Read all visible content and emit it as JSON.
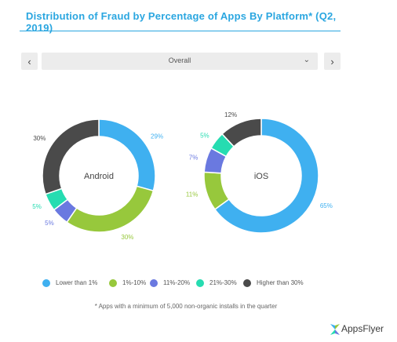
{
  "title": "Distribution of Fraud by Percentage of Apps By Platform*  (Q2, 2019)",
  "filter": {
    "prev_label": "‹",
    "next_label": "›",
    "selected": "Overall",
    "caret": "⌄"
  },
  "legend": [
    {
      "label": "Lower than 1%",
      "color": "#3fb0f0"
    },
    {
      "label": "1%-10%",
      "color": "#97c83c"
    },
    {
      "label": "11%-20%",
      "color": "#6a79e0"
    },
    {
      "label": "21%-30%",
      "color": "#26dcb1"
    },
    {
      "label": "Higher than 30%",
      "color": "#4a4a4a"
    }
  ],
  "footnote": "* Apps with a minimum of 5,000 non-organic installs in the quarter",
  "logo": {
    "text": "AppsFlyer",
    "icon": "appsflyer-logo-icon"
  },
  "chart_data": [
    {
      "type": "pie",
      "center_label": "Android",
      "categories": [
        "Lower than 1%",
        "1%-10%",
        "11%-20%",
        "21%-30%",
        "Higher than 30%"
      ],
      "values": [
        29,
        30,
        5,
        5,
        30
      ],
      "data_labels": [
        "29%",
        "30%",
        "5%",
        "5%",
        "30%"
      ]
    },
    {
      "type": "pie",
      "center_label": "iOS",
      "categories": [
        "Lower than 1%",
        "1%-10%",
        "11%-20%",
        "21%-30%",
        "Higher than 30%"
      ],
      "values": [
        65,
        11,
        7,
        5,
        12
      ],
      "data_labels": [
        "65%",
        "11%",
        "7%",
        "5%",
        "12%"
      ]
    }
  ]
}
